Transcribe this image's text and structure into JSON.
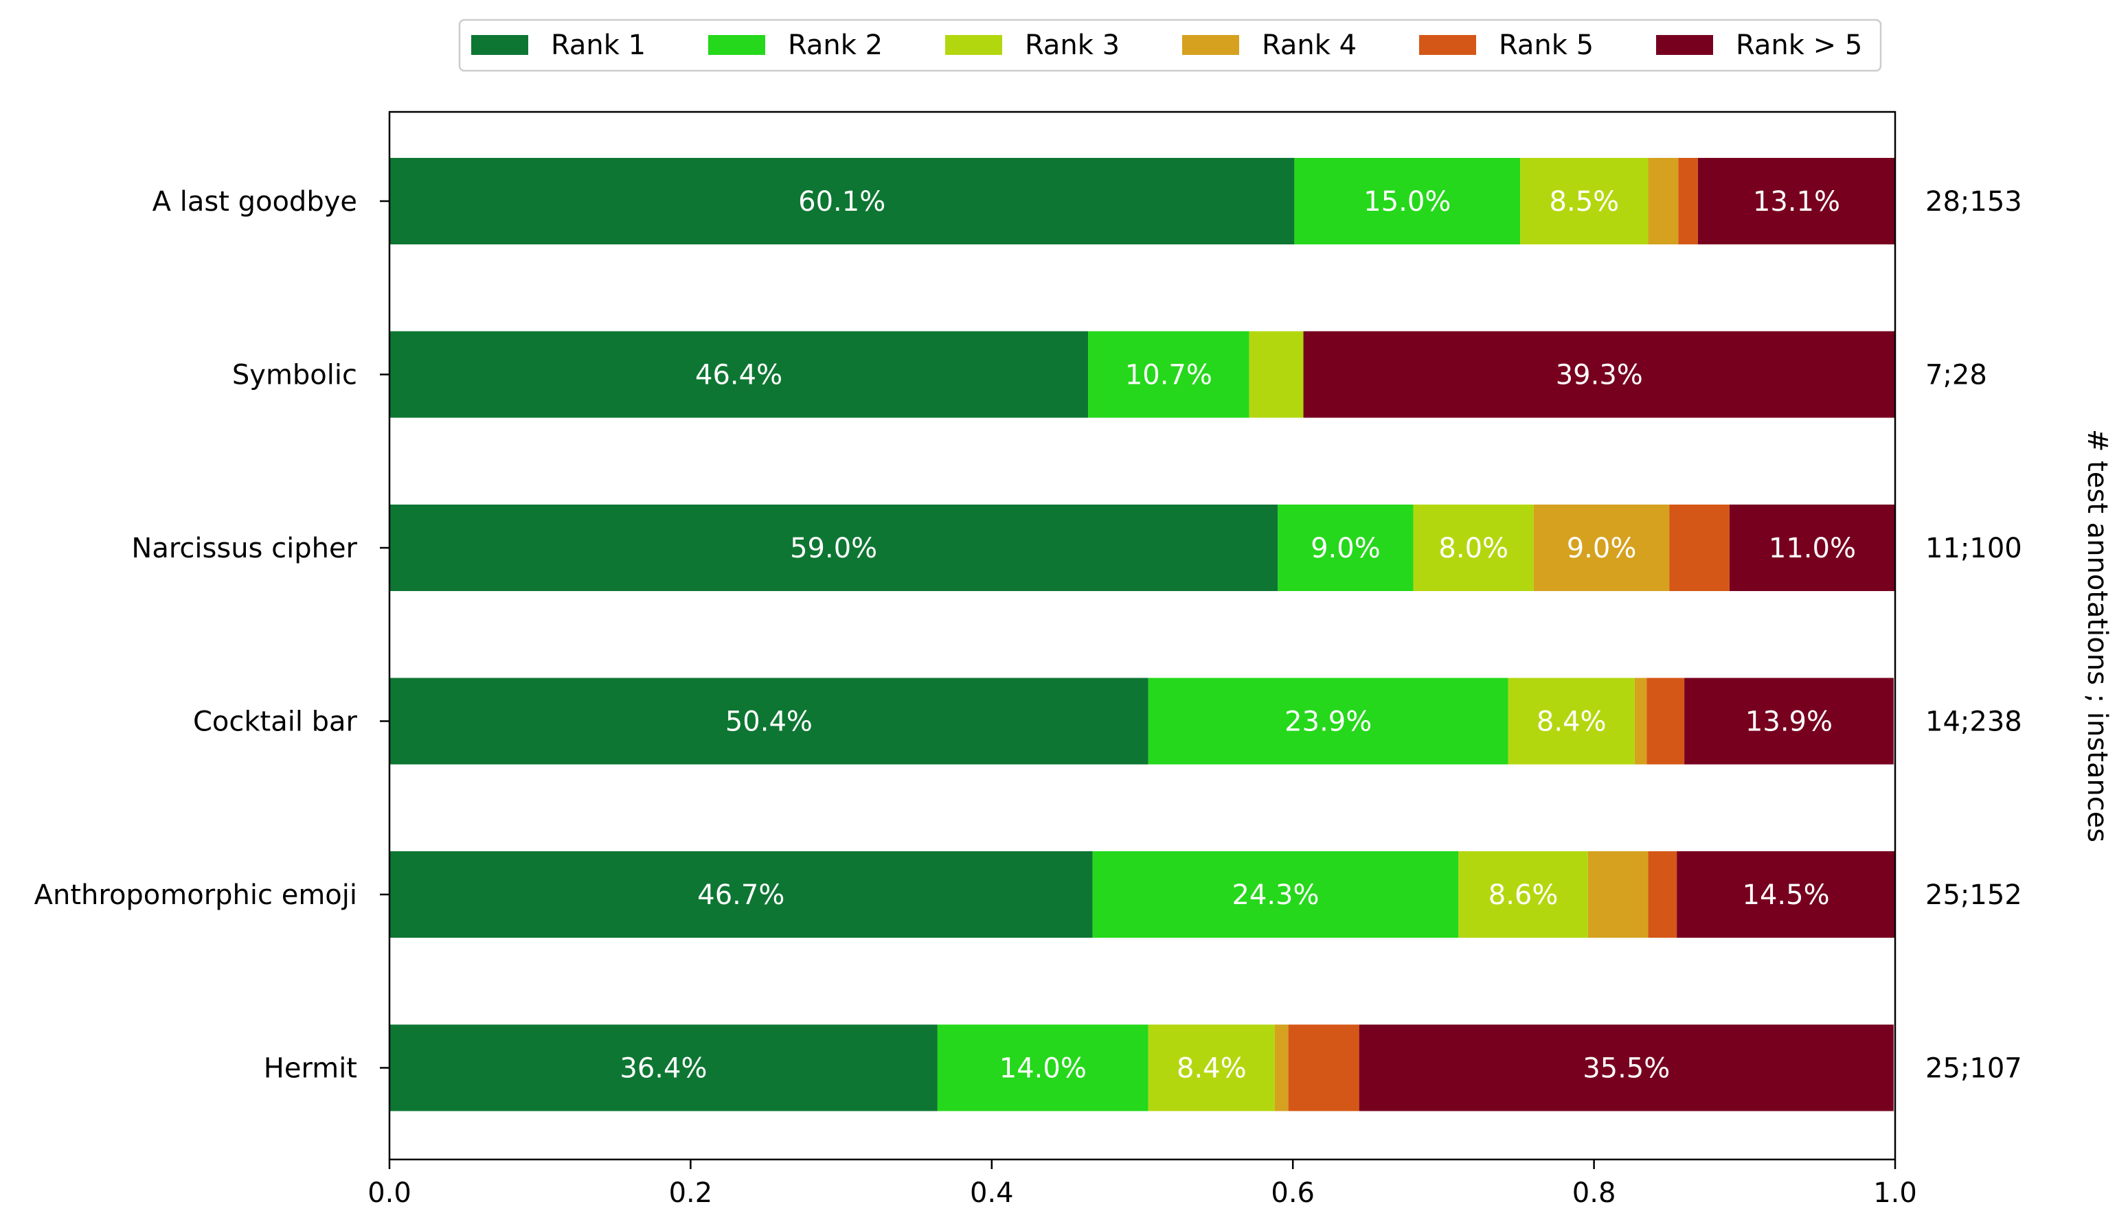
{
  "chart_data": {
    "type": "bar",
    "orientation": "horizontal",
    "stacked": true,
    "title": "",
    "xlabel": "",
    "ylabel": "",
    "right_axis_label": "# test annotations ; instances",
    "xlim": [
      0.0,
      1.0
    ],
    "xticks": [
      "0.0",
      "0.2",
      "0.4",
      "0.6",
      "0.8",
      "1.0"
    ],
    "grid": false,
    "legend_position": "top-center",
    "categories": [
      "A last goodbye",
      "Symbolic",
      "Narcissus cipher",
      "Cocktail bar",
      "Anthropomorphic emoji",
      "Hermit"
    ],
    "right_labels": [
      "28;153",
      "7;28",
      "11;100",
      "14;238",
      "25;152",
      "25;107"
    ],
    "series": [
      {
        "name": "Rank 1",
        "color": "#0e7633",
        "values": [
          0.601,
          0.464,
          0.59,
          0.504,
          0.467,
          0.364
        ],
        "labels": [
          "60.1%",
          "46.4%",
          "59.0%",
          "50.4%",
          "46.7%",
          "36.4%"
        ]
      },
      {
        "name": "Rank 2",
        "color": "#25d81b",
        "values": [
          0.15,
          0.107,
          0.09,
          0.239,
          0.243,
          0.14
        ],
        "labels": [
          "15.0%",
          "10.7%",
          "9.0%",
          "23.9%",
          "24.3%",
          "14.0%"
        ]
      },
      {
        "name": "Rank 3",
        "color": "#b3d70f",
        "values": [
          0.085,
          0.036,
          0.08,
          0.084,
          0.086,
          0.084
        ],
        "labels": [
          "8.5%",
          "",
          "8.0%",
          "8.4%",
          "8.6%",
          "8.4%"
        ]
      },
      {
        "name": "Rank 4",
        "color": "#d6a11f",
        "values": [
          0.02,
          0.0,
          0.09,
          0.008,
          0.04,
          0.009
        ],
        "labels": [
          "",
          "",
          "9.0%",
          "",
          "",
          ""
        ]
      },
      {
        "name": "Rank 5",
        "color": "#d55717",
        "values": [
          0.013,
          0.0,
          0.04,
          0.025,
          0.019,
          0.047
        ],
        "labels": [
          "",
          "",
          "",
          "",
          "",
          ""
        ]
      },
      {
        "name": "Rank > 5",
        "color": "#77001f",
        "values": [
          0.131,
          0.393,
          0.11,
          0.139,
          0.145,
          0.355
        ],
        "labels": [
          "13.1%",
          "39.3%",
          "11.0%",
          "13.9%",
          "14.5%",
          "35.5%"
        ]
      }
    ]
  }
}
